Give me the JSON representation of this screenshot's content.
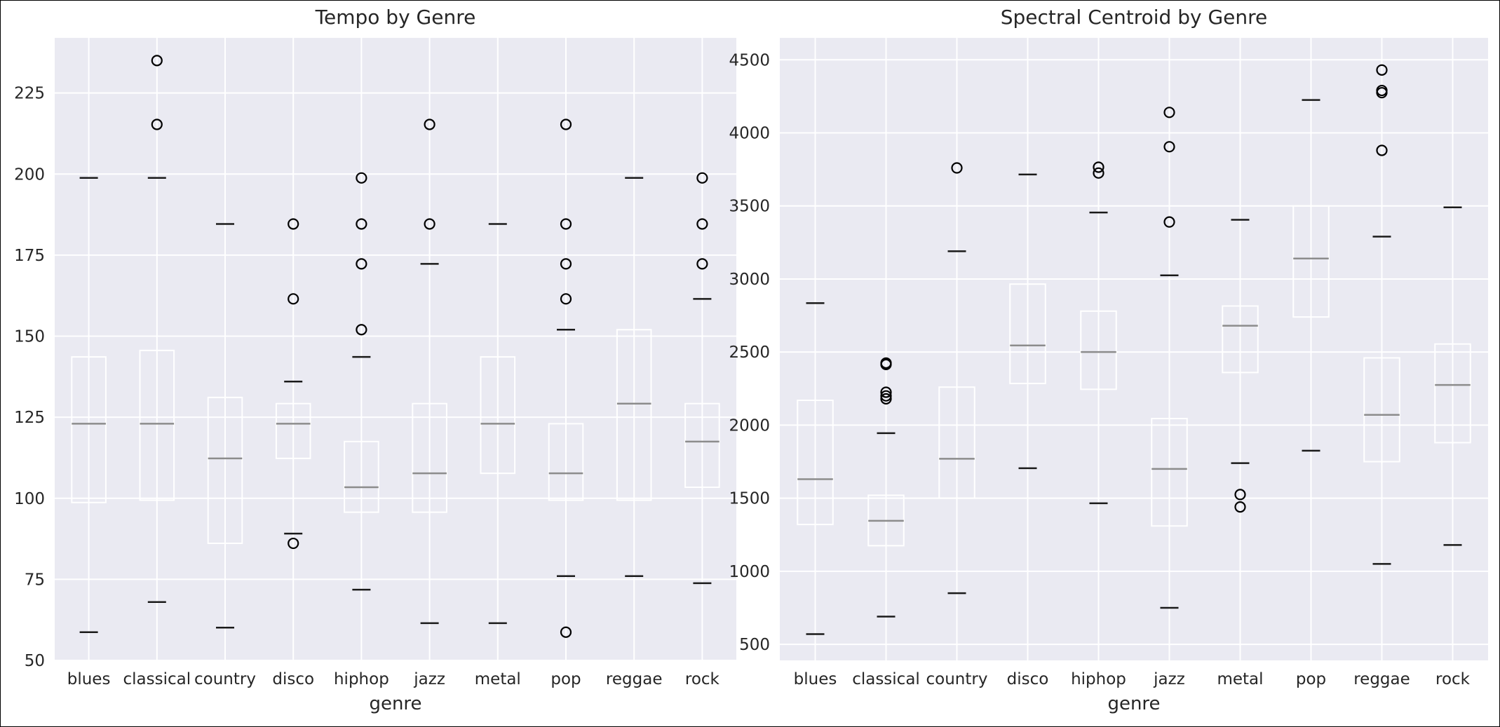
{
  "chart_data": [
    {
      "type": "box",
      "title": "Tempo by Genre",
      "xlabel": "genre",
      "ylabel": "",
      "ylim": [
        50,
        242
      ],
      "yticks": [
        50,
        75,
        100,
        125,
        150,
        175,
        200,
        225
      ],
      "grid": true,
      "categories": [
        "blues",
        "classical",
        "country",
        "disco",
        "hiphop",
        "jazz",
        "metal",
        "pop",
        "reggae",
        "rock"
      ],
      "boxes": [
        {
          "whislo": 58.7,
          "q1": 98.7,
          "med": 123.0,
          "q3": 143.6,
          "whishi": 198.8,
          "fliers": []
        },
        {
          "whislo": 68.0,
          "q1": 99.4,
          "med": 123.0,
          "q3": 145.6,
          "whishi": 198.8,
          "fliers": [
            215.3,
            235.0
          ]
        },
        {
          "whislo": 60.1,
          "q1": 86.1,
          "med": 112.3,
          "q3": 131.1,
          "whishi": 184.6,
          "fliers": []
        },
        {
          "whislo": 89.1,
          "q1": 112.3,
          "med": 123.0,
          "q3": 129.2,
          "whishi": 136.0,
          "fliers": [
            86.1,
            161.5,
            184.6
          ]
        },
        {
          "whislo": 71.8,
          "q1": 95.7,
          "med": 103.4,
          "q3": 117.5,
          "whishi": 143.6,
          "fliers": [
            152.0,
            172.3,
            184.6,
            198.8
          ]
        },
        {
          "whislo": 61.5,
          "q1": 95.7,
          "med": 107.7,
          "q3": 129.2,
          "whishi": 172.3,
          "fliers": [
            184.6,
            215.3
          ]
        },
        {
          "whislo": 61.5,
          "q1": 107.7,
          "med": 123.0,
          "q3": 143.6,
          "whishi": 184.6,
          "fliers": []
        },
        {
          "whislo": 76.0,
          "q1": 99.4,
          "med": 107.7,
          "q3": 123.0,
          "whishi": 152.0,
          "fliers": [
            58.7,
            161.5,
            172.3,
            184.6,
            215.3
          ]
        },
        {
          "whislo": 76.0,
          "q1": 99.4,
          "med": 129.2,
          "q3": 152.0,
          "whishi": 198.8,
          "fliers": []
        },
        {
          "whislo": 73.8,
          "q1": 103.4,
          "med": 117.5,
          "q3": 129.2,
          "whishi": 161.5,
          "fliers": [
            172.3,
            184.6,
            198.8
          ]
        }
      ]
    },
    {
      "type": "box",
      "title": "Spectral Centroid by Genre",
      "xlabel": "genre",
      "ylabel": "",
      "ylim": [
        390,
        4650
      ],
      "yticks": [
        500,
        1000,
        1500,
        2000,
        2500,
        3000,
        3500,
        4000,
        4500
      ],
      "grid": true,
      "categories": [
        "blues",
        "classical",
        "country",
        "disco",
        "hiphop",
        "jazz",
        "metal",
        "pop",
        "reggae",
        "rock"
      ],
      "boxes": [
        {
          "whislo": 570,
          "q1": 1320,
          "med": 1630,
          "q3": 2170,
          "whishi": 2835,
          "fliers": []
        },
        {
          "whislo": 690,
          "q1": 1175,
          "med": 1345,
          "q3": 1520,
          "whishi": 1945,
          "fliers": [
            2180,
            2200,
            2225,
            2415,
            2425
          ]
        },
        {
          "whislo": 850,
          "q1": 1500,
          "med": 1770,
          "q3": 2260,
          "whishi": 3190,
          "fliers": [
            3760
          ]
        },
        {
          "whislo": 1705,
          "q1": 2285,
          "med": 2545,
          "q3": 2965,
          "whishi": 3715,
          "fliers": []
        },
        {
          "whislo": 1465,
          "q1": 2245,
          "med": 2500,
          "q3": 2780,
          "whishi": 3455,
          "fliers": [
            3725,
            3765
          ]
        },
        {
          "whislo": 750,
          "q1": 1310,
          "med": 1700,
          "q3": 2045,
          "whishi": 3025,
          "fliers": [
            3390,
            3905,
            4140
          ]
        },
        {
          "whislo": 1740,
          "q1": 2360,
          "med": 2680,
          "q3": 2815,
          "whishi": 3405,
          "fliers": [
            1440,
            1525
          ]
        },
        {
          "whislo": 1825,
          "q1": 2740,
          "med": 3140,
          "q3": 3500,
          "whishi": 4225,
          "fliers": []
        },
        {
          "whislo": 1050,
          "q1": 1750,
          "med": 2070,
          "q3": 2460,
          "whishi": 3290,
          "fliers": [
            3880,
            4275,
            4290,
            4430
          ]
        },
        {
          "whislo": 1180,
          "q1": 1880,
          "med": 2275,
          "q3": 2555,
          "whishi": 3490,
          "fliers": []
        }
      ]
    }
  ]
}
